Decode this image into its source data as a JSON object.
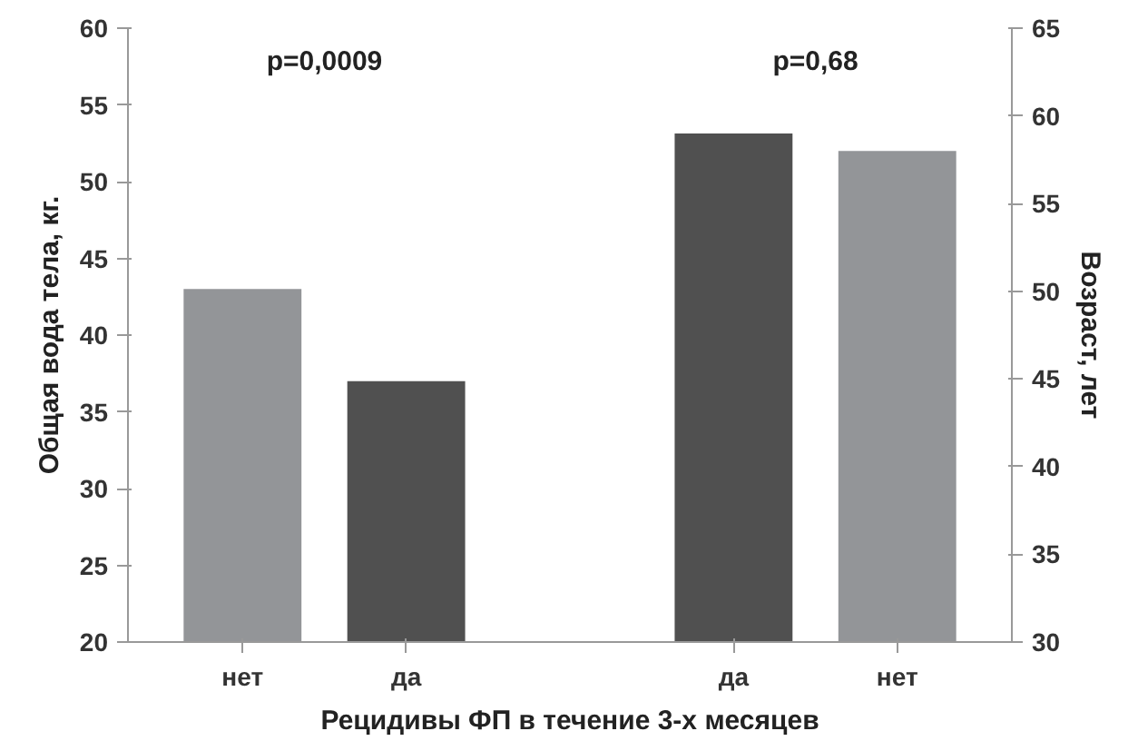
{
  "chart_data": {
    "type": "bar",
    "xlabel": "Рецидивы ФП в течение 3-х месяцев",
    "ylabel": "Общая вода тела, кг.",
    "y2label": "Возраст, лет",
    "categories": [
      "нет",
      "да",
      null,
      "да",
      "нет"
    ],
    "series": [
      {
        "values": [
          43,
          37,
          null,
          null,
          null
        ],
        "colors": [
          "#939598",
          "#505050",
          null,
          null,
          null
        ]
      },
      {
        "values": [
          null,
          null,
          null,
          59,
          58
        ],
        "colors": [
          null,
          null,
          null,
          "#505050",
          "#939598"
        ],
        "axis": "y2"
      }
    ],
    "ylim": [
      20,
      60
    ],
    "yticks": [
      20,
      25,
      30,
      35,
      40,
      45,
      50,
      55,
      60
    ],
    "y2lim": [
      30,
      65
    ],
    "y2ticks": [
      30,
      35,
      40,
      45,
      50,
      55,
      60,
      65
    ],
    "annotations": [
      "p=0,0009",
      "p=0,68"
    ],
    "grid": false
  }
}
